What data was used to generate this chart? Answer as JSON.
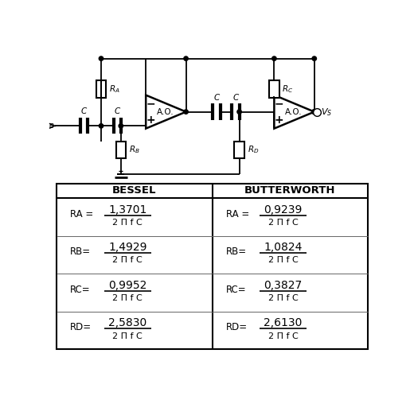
{
  "bessel_label": "BESSEL",
  "butterworth_label": "BUTTERWORTH",
  "bessel_formulas": [
    {
      "var": "RA =",
      "num": "1,3701",
      "den": "2 Π f C"
    },
    {
      "var": "RB=",
      "num": "1,4929",
      "den": "2 Π f C"
    },
    {
      "var": "RC=",
      "num": "0,9952",
      "den": "2 Π f C"
    },
    {
      "var": "RD=",
      "num": "2,5830",
      "den": "2 Π f C"
    }
  ],
  "butterworth_formulas": [
    {
      "var": "RA =",
      "num": "0,9239",
      "den": "2 Π f C"
    },
    {
      "var": "RB=",
      "num": "1,0824",
      "den": "2 Π f C"
    },
    {
      "var": "RC=",
      "num": "0,3827",
      "den": "2 Π f C"
    },
    {
      "var": "RD=",
      "num": "2,6130",
      "den": "2 Π f C"
    }
  ]
}
